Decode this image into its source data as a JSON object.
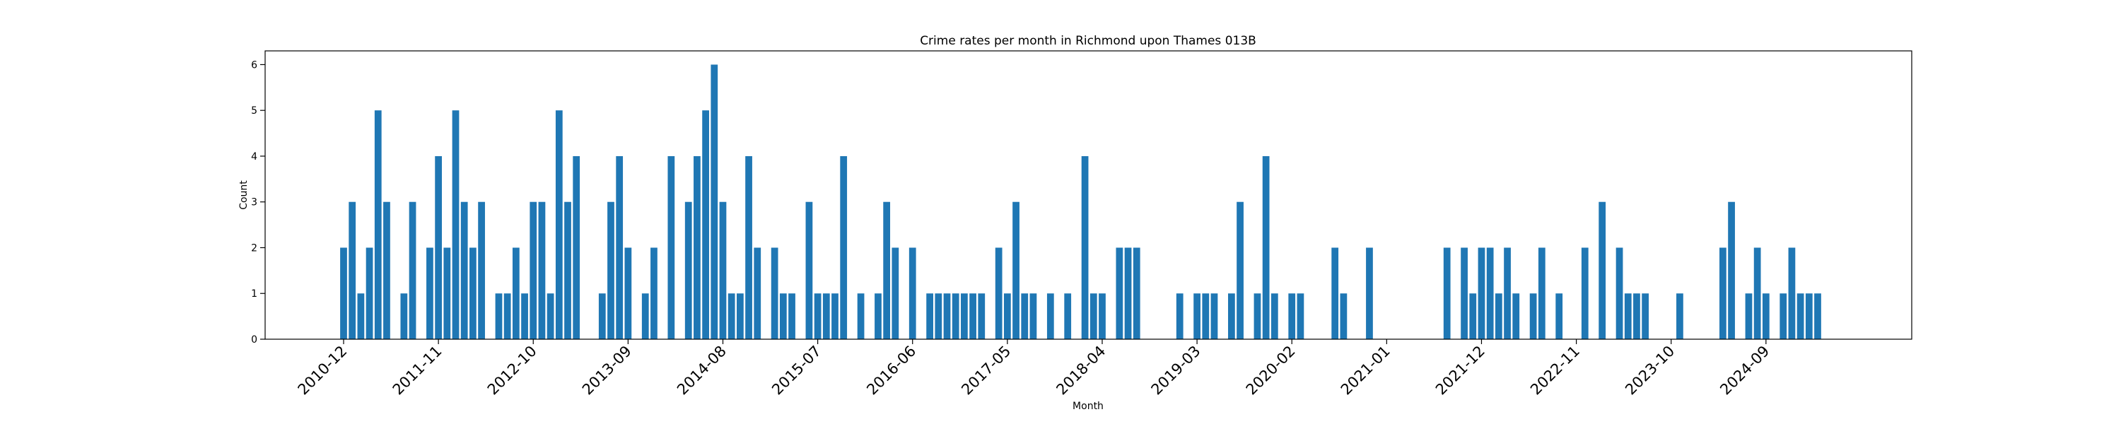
{
  "chart_data": {
    "type": "bar",
    "title": "Crime rates per month in Richmond upon Thames 013B",
    "xlabel": "Month",
    "ylabel": "Count",
    "ylim": [
      0,
      6.3
    ],
    "yticks": [
      0,
      1,
      2,
      3,
      4,
      5,
      6
    ],
    "xticks": [
      "2010-12",
      "2011-11",
      "2012-10",
      "2013-09",
      "2014-08",
      "2015-07",
      "2016-06",
      "2017-05",
      "2018-04",
      "2019-03",
      "2020-02",
      "2021-01",
      "2021-12",
      "2022-11",
      "2023-10",
      "2024-09"
    ],
    "grid": false,
    "bar_color": "#1f77b4",
    "start_month": "2010-12",
    "values": [
      2,
      3,
      1,
      2,
      5,
      3,
      0,
      1,
      3,
      0,
      2,
      4,
      2,
      5,
      3,
      2,
      3,
      0,
      1,
      1,
      2,
      1,
      3,
      3,
      1,
      5,
      3,
      4,
      0,
      0,
      1,
      3,
      4,
      2,
      0,
      1,
      2,
      0,
      4,
      0,
      3,
      4,
      5,
      6,
      3,
      1,
      1,
      4,
      2,
      0,
      2,
      1,
      1,
      0,
      3,
      1,
      1,
      1,
      4,
      0,
      1,
      0,
      1,
      3,
      2,
      0,
      2,
      0,
      1,
      1,
      1,
      1,
      1,
      1,
      1,
      0,
      2,
      1,
      3,
      1,
      1,
      0,
      1,
      0,
      1,
      0,
      4,
      1,
      1,
      0,
      2,
      2,
      2,
      0,
      0,
      0,
      0,
      1,
      0,
      1,
      1,
      1,
      0,
      1,
      3,
      0,
      1,
      4,
      1,
      0,
      1,
      1,
      0,
      0,
      0,
      2,
      1,
      0,
      0,
      2,
      0,
      0,
      0,
      0,
      0,
      0,
      0,
      0,
      2,
      0,
      2,
      1,
      2,
      2,
      1,
      2,
      1,
      0,
      1,
      2,
      0,
      1,
      0,
      0,
      2,
      0,
      3,
      0,
      2,
      1,
      1,
      1,
      0,
      0,
      0,
      1,
      0,
      0,
      0,
      0,
      2,
      3,
      0,
      1,
      2,
      1,
      0,
      1,
      2,
      1,
      1,
      1
    ]
  }
}
